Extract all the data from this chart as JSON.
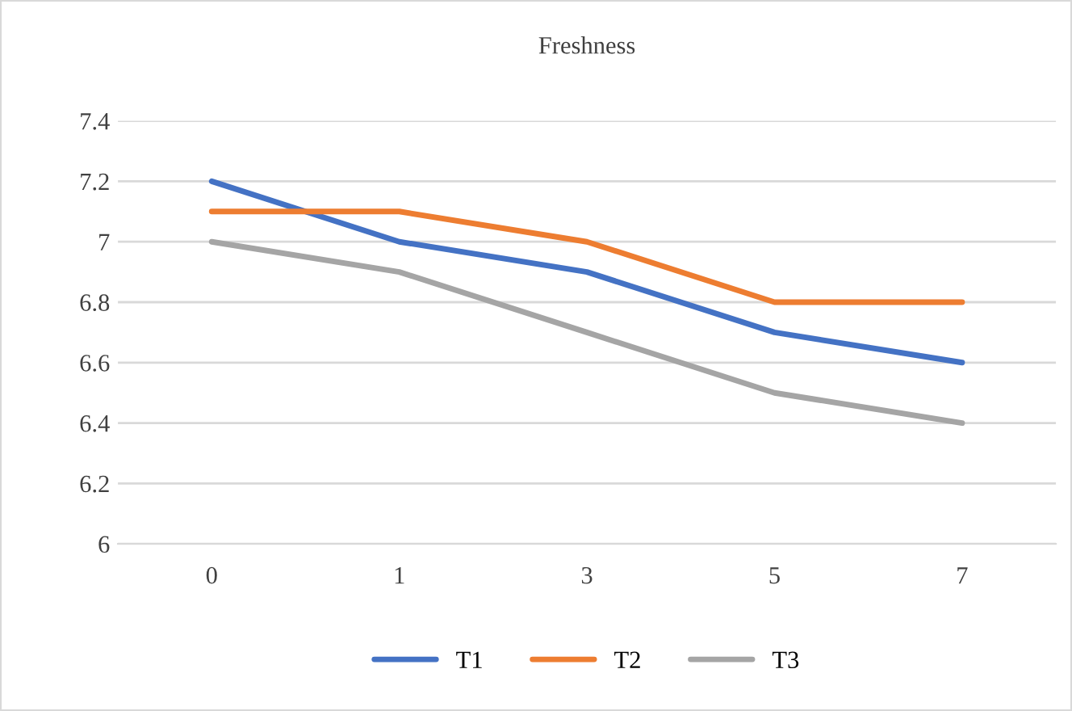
{
  "chart_data": {
    "type": "line",
    "title": "Freshness",
    "categories": [
      "0",
      "1",
      "3",
      "5",
      "7"
    ],
    "series": [
      {
        "name": "T1",
        "color": "#4472c4",
        "values": [
          7.2,
          7.0,
          6.9,
          6.7,
          6.6
        ]
      },
      {
        "name": "T2",
        "color": "#ed7d31",
        "values": [
          7.1,
          7.1,
          7.0,
          6.8,
          6.8
        ]
      },
      {
        "name": "T3",
        "color": "#a5a5a5",
        "values": [
          7.0,
          6.9,
          6.7,
          6.5,
          6.4
        ]
      }
    ],
    "ylim": [
      6,
      7.4
    ],
    "yticks": [
      6,
      6.2,
      6.4,
      6.6,
      6.8,
      7,
      7.2,
      7.4
    ],
    "grid": "y",
    "legend": "bottom",
    "marker": "none",
    "line_style": "solid"
  }
}
